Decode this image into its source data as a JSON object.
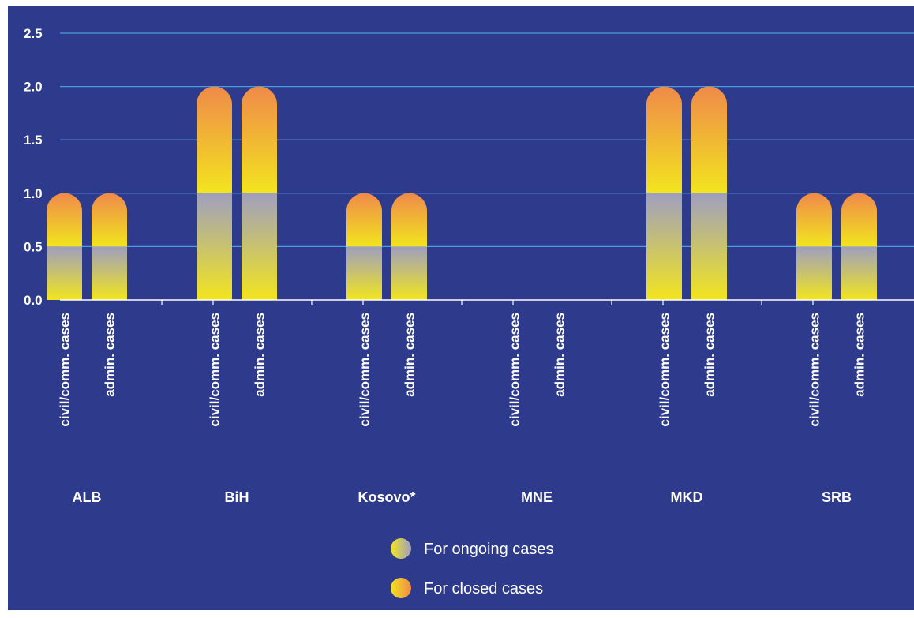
{
  "chart_data": {
    "type": "bar",
    "stacked": true,
    "y_ticks": [
      "0.0",
      "0.5",
      "1.0",
      "1.5",
      "2.0",
      "2.5"
    ],
    "ylim": [
      0,
      2.5
    ],
    "grid": true,
    "groups": [
      {
        "label": "ALB",
        "bars": [
          {
            "category": "civil/comm. cases",
            "ongoing": 0.5,
            "closed": 0.5
          },
          {
            "category": "admin. cases",
            "ongoing": 0.5,
            "closed": 0.5
          }
        ]
      },
      {
        "label": "BiH",
        "bars": [
          {
            "category": "civil/comm. cases",
            "ongoing": 1.0,
            "closed": 1.0
          },
          {
            "category": "admin. cases",
            "ongoing": 1.0,
            "closed": 1.0
          }
        ]
      },
      {
        "label": "Kosovo*",
        "bars": [
          {
            "category": "civil/comm. cases",
            "ongoing": 0.5,
            "closed": 0.5
          },
          {
            "category": "admin. cases",
            "ongoing": 0.5,
            "closed": 0.5
          }
        ]
      },
      {
        "label": "MNE",
        "bars": [
          {
            "category": "civil/comm. cases",
            "ongoing": 0,
            "closed": 0
          },
          {
            "category": "admin. cases",
            "ongoing": 0,
            "closed": 0
          }
        ]
      },
      {
        "label": "MKD",
        "bars": [
          {
            "category": "civil/comm. cases",
            "ongoing": 1.0,
            "closed": 1.0
          },
          {
            "category": "admin. cases",
            "ongoing": 1.0,
            "closed": 1.0
          }
        ]
      },
      {
        "label": "SRB",
        "bars": [
          {
            "category": "civil/comm. cases",
            "ongoing": 0.5,
            "closed": 0.5
          },
          {
            "category": "admin. cases",
            "ongoing": 0.5,
            "closed": 0.5
          }
        ]
      }
    ],
    "series": [
      {
        "name": "For ongoing cases",
        "key": "ongoing"
      },
      {
        "name": "For closed cases",
        "key": "closed"
      }
    ],
    "legend_position": "bottom-center"
  },
  "colors": {
    "background": "#2e3b8d",
    "grid": "#4a9be0",
    "axis": "#ffffff",
    "ongoing_top": "#9f9fbf",
    "ongoing_bottom": "#f2e51e",
    "closed_top": "#ef8a4a",
    "closed_bottom": "#f2e51e"
  }
}
